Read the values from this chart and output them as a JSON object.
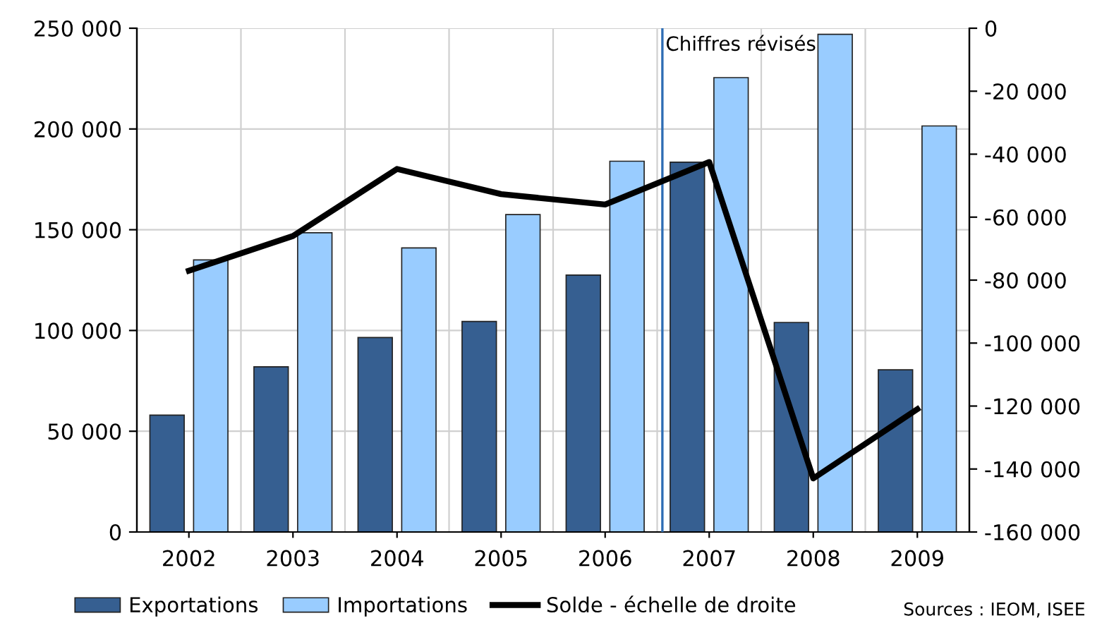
{
  "chart_data": {
    "type": "bar",
    "categories": [
      "2002",
      "2003",
      "2004",
      "2005",
      "2006",
      "2007",
      "2008",
      "2009"
    ],
    "series": [
      {
        "name": "Exportations",
        "color": "#365f91",
        "values": [
          58000,
          82000,
          96500,
          104500,
          127500,
          183500,
          104000,
          80500
        ]
      },
      {
        "name": "Importations",
        "color": "#99ccff",
        "values": [
          135000,
          148500,
          141000,
          157500,
          184000,
          225500,
          247000,
          201500
        ]
      },
      {
        "name": "Solde - échelle de droite",
        "type": "line",
        "axis": "y2",
        "color": "#000000",
        "values": [
          -77000,
          -66000,
          -44700,
          -52700,
          -56000,
          -42500,
          -143000,
          -121000
        ]
      }
    ],
    "ylim": [
      0,
      250000
    ],
    "yticks": [
      {
        "value": 0,
        "label": "0"
      },
      {
        "value": 50000,
        "label": "50 000"
      },
      {
        "value": 100000,
        "label": "100 000"
      },
      {
        "value": 150000,
        "label": "150 000"
      },
      {
        "value": 200000,
        "label": "200 000"
      },
      {
        "value": 250000,
        "label": "250 000"
      }
    ],
    "y2lim": [
      -160000,
      0
    ],
    "y2ticks": [
      {
        "value": -160000,
        "label": "-160 000"
      },
      {
        "value": -140000,
        "label": "-140 000"
      },
      {
        "value": -120000,
        "label": "-120 000"
      },
      {
        "value": -100000,
        "label": "-100 000"
      },
      {
        "value": -80000,
        "label": "-80 000"
      },
      {
        "value": -60000,
        "label": "-60 000"
      },
      {
        "value": -40000,
        "label": "-40 000"
      },
      {
        "value": -20000,
        "label": "-20 000"
      },
      {
        "value": 0,
        "label": "0"
      }
    ],
    "ref_lines": [
      {
        "axis": "x",
        "value": "2007",
        "label": "Chiffres révisés",
        "color": "#2e6db4"
      }
    ],
    "grid": true,
    "legend": "bottom",
    "annotations": [
      "Sources : IEOM, ISEE"
    ]
  }
}
